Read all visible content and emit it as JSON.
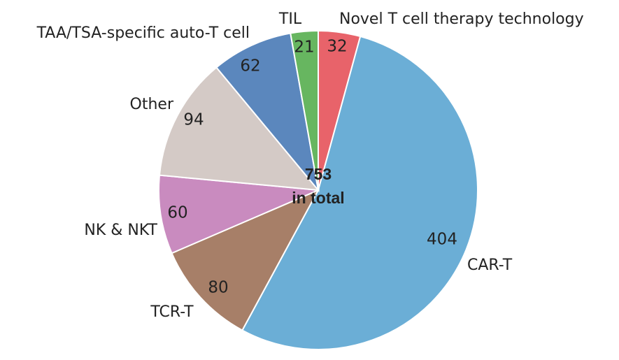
{
  "chart_data": {
    "type": "pie",
    "categories": [
      "Novel T cell therapy technology",
      "CAR-T",
      "TCR-T",
      "NK & NKT",
      "Other",
      "TAA/TSA-specific auto-T cell",
      "TIL"
    ],
    "values": [
      32,
      404,
      80,
      60,
      94,
      62,
      21
    ],
    "colors": [
      "#e8636a",
      "#6baed6",
      "#a77f68",
      "#c98bbf",
      "#d4cac6",
      "#5b87bd",
      "#67b660"
    ],
    "center_value": 753,
    "center_label": "in total"
  }
}
